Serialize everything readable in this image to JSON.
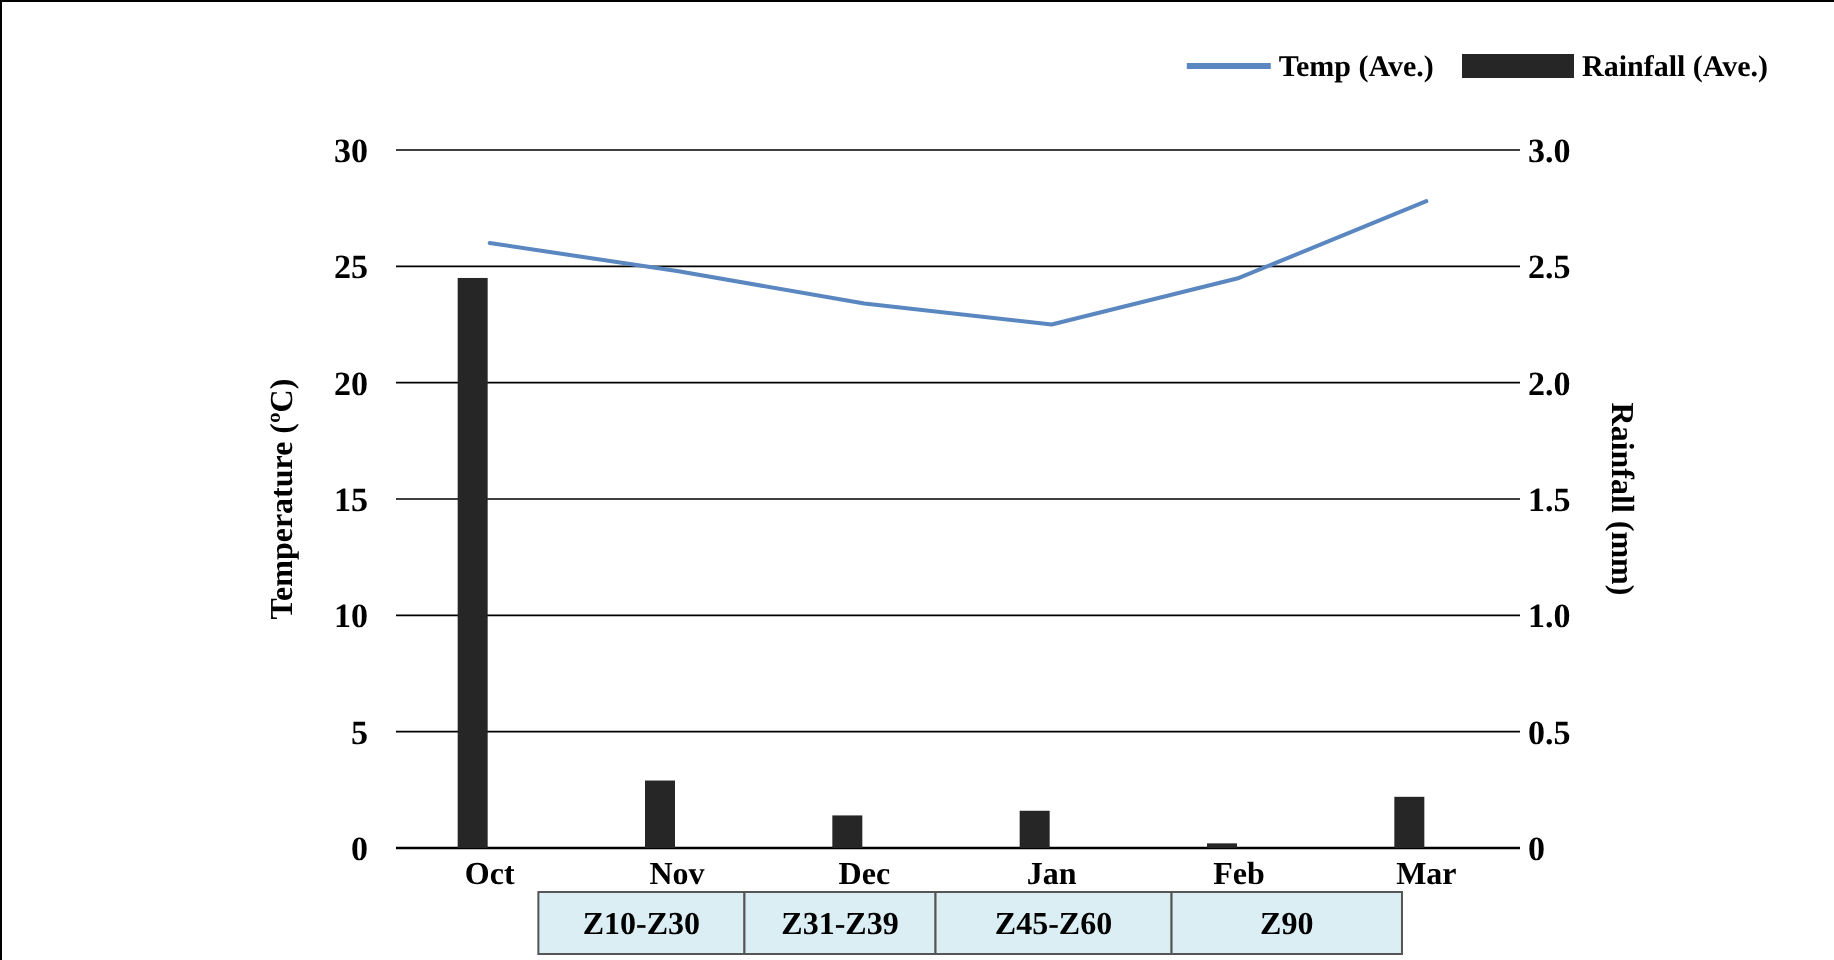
{
  "chart_data": {
    "type": "bar",
    "categories": [
      "Oct",
      "Nov",
      "Dec",
      "Jan",
      "Feb",
      "Mar"
    ],
    "series": [
      {
        "name": "Temp (Ave.)",
        "type": "line",
        "color": "#5b87c0",
        "values": [
          26.0,
          24.8,
          23.4,
          22.5,
          24.5,
          27.8
        ]
      },
      {
        "name": "Rainfall (Ave.)",
        "axis": "y2",
        "color": "#262626",
        "values": [
          2.45,
          0.29,
          0.14,
          0.16,
          0.02,
          0.22
        ]
      }
    ],
    "ylabel": "Temperature (ºC)",
    "y2label": "Rainfall (mm)",
    "ylim": [
      0,
      30
    ],
    "yticks": [
      0,
      5,
      10,
      15,
      20,
      25,
      30
    ],
    "y2lim": [
      0,
      3
    ],
    "y2ticks": [
      0,
      {
        "value": 0.5,
        "label": "0.5"
      },
      {
        "value": 1,
        "label": "1.0"
      },
      {
        "value": 1.5,
        "label": "1.5"
      },
      {
        "value": 2,
        "label": "2.0"
      },
      {
        "value": 2.5,
        "label": "2.5"
      },
      {
        "value": 3,
        "label": "3.0"
      }
    ],
    "grid": "y",
    "legend": "top right",
    "annotations": [
      "Z10-Z30",
      "Z31-Z39",
      "Z45-Z60",
      "Z90"
    ]
  }
}
